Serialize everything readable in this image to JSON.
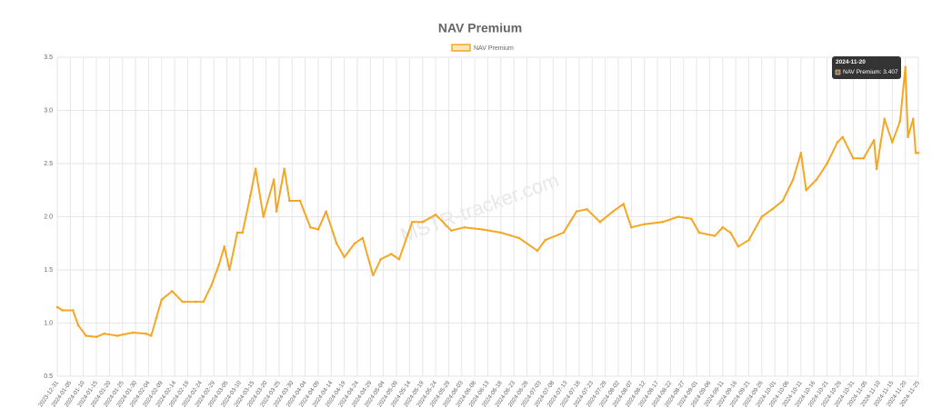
{
  "chart_data": {
    "type": "line",
    "title": "NAV Premium",
    "watermark": "MSTR-tracker.com",
    "x": [
      "2023-12-31",
      "2024-01-02",
      "2024-01-06",
      "2024-01-08",
      "2024-01-11",
      "2024-01-15",
      "2024-01-18",
      "2024-01-23",
      "2024-01-29",
      "2024-02-03",
      "2024-02-05",
      "2024-02-07",
      "2024-02-09",
      "2024-02-13",
      "2024-02-17",
      "2024-02-22",
      "2024-02-25",
      "2024-02-28",
      "2024-03-02",
      "2024-03-04",
      "2024-03-06",
      "2024-03-09",
      "2024-03-11",
      "2024-03-14",
      "2024-03-16",
      "2024-03-19",
      "2024-03-23",
      "2024-03-24",
      "2024-03-27",
      "2024-03-29",
      "2024-04-02",
      "2024-04-06",
      "2024-04-09",
      "2024-04-12",
      "2024-04-16",
      "2024-04-19",
      "2024-04-23",
      "2024-04-26",
      "2024-04-30",
      "2024-05-03",
      "2024-05-07",
      "2024-05-10",
      "2024-05-15",
      "2024-05-19",
      "2024-05-24",
      "2024-05-30",
      "2024-06-04",
      "2024-06-11",
      "2024-06-18",
      "2024-06-25",
      "2024-07-02",
      "2024-07-05",
      "2024-07-12",
      "2024-07-17",
      "2024-07-21",
      "2024-07-26",
      "2024-07-31",
      "2024-08-04",
      "2024-08-07",
      "2024-08-12",
      "2024-08-19",
      "2024-08-25",
      "2024-08-30",
      "2024-09-02",
      "2024-09-08",
      "2024-09-11",
      "2024-09-14",
      "2024-09-17",
      "2024-09-21",
      "2024-09-26",
      "2024-09-30",
      "2024-10-04",
      "2024-10-08",
      "2024-10-11",
      "2024-10-13",
      "2024-10-17",
      "2024-10-21",
      "2024-10-25",
      "2024-10-27",
      "2024-10-31",
      "2024-11-04",
      "2024-11-08",
      "2024-11-09",
      "2024-11-12",
      "2024-11-15",
      "2024-11-18",
      "2024-11-20",
      "2024-11-21",
      "2024-11-23",
      "2024-11-24",
      "2024-11-25"
    ],
    "series": [
      {
        "name": "NAV Premium",
        "color": "#f5a623",
        "values": [
          1.15,
          1.12,
          1.12,
          0.98,
          0.88,
          0.87,
          0.9,
          0.88,
          0.91,
          0.9,
          0.88,
          1.05,
          1.22,
          1.3,
          1.2,
          1.2,
          1.2,
          1.35,
          1.55,
          1.72,
          1.5,
          1.85,
          1.85,
          2.2,
          2.45,
          2.0,
          2.35,
          2.05,
          2.45,
          2.15,
          2.15,
          1.9,
          1.88,
          2.05,
          1.75,
          1.62,
          1.75,
          1.8,
          1.45,
          1.6,
          1.65,
          1.6,
          1.95,
          1.95,
          2.02,
          1.87,
          1.9,
          1.88,
          1.85,
          1.8,
          1.68,
          1.78,
          1.85,
          2.05,
          2.07,
          1.95,
          2.05,
          2.12,
          1.9,
          1.93,
          1.95,
          2.0,
          1.98,
          1.85,
          1.82,
          1.9,
          1.85,
          1.72,
          1.78,
          2.0,
          2.07,
          2.15,
          2.35,
          2.6,
          2.25,
          2.35,
          2.5,
          2.7,
          2.75,
          2.55,
          2.55,
          2.72,
          2.45,
          2.92,
          2.7,
          2.9,
          3.407,
          2.75,
          2.92,
          2.6,
          2.6
        ]
      }
    ],
    "xlim": [
      "2023-12-31",
      "2024-11-25"
    ],
    "xticks": [
      "2023-12-31",
      "2024-01-05",
      "2024-01-10",
      "2024-01-15",
      "2024-01-20",
      "2024-01-25",
      "2024-01-30",
      "2024-02-04",
      "2024-02-09",
      "2024-02-14",
      "2024-02-19",
      "2024-02-24",
      "2024-02-29",
      "2024-03-05",
      "2024-03-10",
      "2024-03-15",
      "2024-03-20",
      "2024-03-25",
      "2024-03-30",
      "2024-04-04",
      "2024-04-09",
      "2024-04-14",
      "2024-04-19",
      "2024-04-24",
      "2024-04-29",
      "2024-05-04",
      "2024-05-09",
      "2024-05-14",
      "2024-05-19",
      "2024-05-24",
      "2024-05-29",
      "2024-06-03",
      "2024-06-08",
      "2024-06-13",
      "2024-06-18",
      "2024-06-23",
      "2024-06-28",
      "2024-07-03",
      "2024-07-08",
      "2024-07-13",
      "2024-07-18",
      "2024-07-23",
      "2024-07-28",
      "2024-08-02",
      "2024-08-07",
      "2024-08-12",
      "2024-08-17",
      "2024-08-22",
      "2024-08-27",
      "2024-09-01",
      "2024-09-06",
      "2024-09-11",
      "2024-09-16",
      "2024-09-21",
      "2024-09-26",
      "2024-10-01",
      "2024-10-06",
      "2024-10-11",
      "2024-10-16",
      "2024-10-21",
      "2024-10-26",
      "2024-10-31",
      "2024-11-05",
      "2024-11-10",
      "2024-11-15",
      "2024-11-20",
      "2024-11-25"
    ],
    "ylim": [
      0.5,
      3.5
    ],
    "yticks": [
      0.5,
      {
        "value": 1,
        "label": "1.0"
      },
      1.5,
      {
        "value": 2,
        "label": "2.0"
      },
      2.5,
      {
        "value": 3,
        "label": "3.0"
      },
      3.5
    ],
    "grid": true,
    "tooltip": {
      "title": "2024-11-20",
      "label": "NAV Premium: 3.407"
    }
  }
}
